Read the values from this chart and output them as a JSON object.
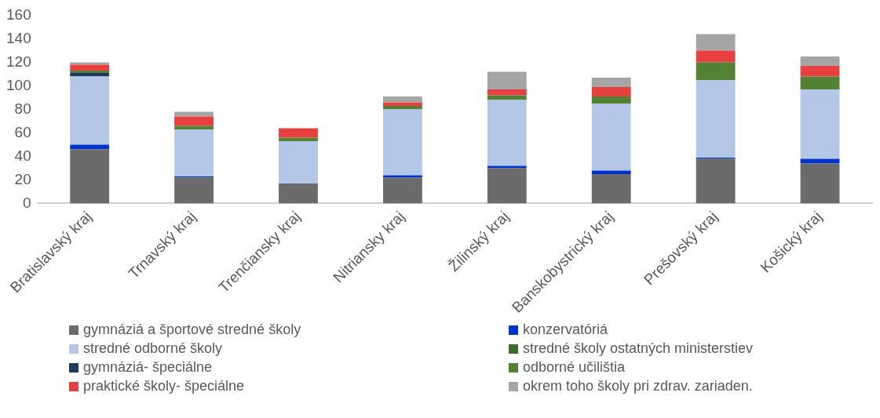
{
  "chart_data": {
    "type": "bar",
    "stacked": true,
    "grid": false,
    "legend": "bottom",
    "categories": [
      "Bratislavský kraj",
      "Trnavský kraj",
      "Trenčiansky kraj",
      "Nitriansky kraj",
      "Žilinský kraj",
      "Banskobystrický kraj",
      "Prešovský kraj",
      "Košický kraj"
    ],
    "ylim": [
      0,
      160
    ],
    "yticks": [
      0,
      20,
      40,
      60,
      80,
      100,
      120,
      140,
      160
    ],
    "series": [
      {
        "name": "gymnáziá a športové stredné školy",
        "color": "#6b6b6b",
        "values": [
          46,
          22,
          17,
          22,
          30,
          25,
          38,
          34
        ]
      },
      {
        "name": "konzervatóriá",
        "color": "#0033cc",
        "values": [
          4,
          1,
          0,
          2,
          2,
          3,
          1,
          4
        ]
      },
      {
        "name": "stredné odborné školy",
        "color": "#b4c7e7",
        "values": [
          58,
          40,
          36,
          56,
          56,
          57,
          66,
          59
        ]
      },
      {
        "name": "stredné školy ostatných ministerstiev",
        "color": "#3f6b2a",
        "values": [
          0,
          0,
          0,
          0,
          0,
          0,
          0,
          0
        ]
      },
      {
        "name": "gymnáziá- špeciálne",
        "color": "#203864",
        "values": [
          3,
          0,
          0,
          0,
          0,
          0,
          0,
          0
        ]
      },
      {
        "name": "odborné učilištia",
        "color": "#548235",
        "values": [
          2,
          3,
          3,
          3,
          4,
          6,
          15,
          11
        ]
      },
      {
        "name": "praktické školy- špeciálne",
        "color": "#e84040",
        "values": [
          5,
          8,
          8,
          3,
          5,
          8,
          10,
          9
        ]
      },
      {
        "name": "okrem toho školy pri zdrav. zariaden.",
        "color": "#a5a5a5",
        "values": [
          2,
          4,
          0,
          5,
          15,
          8,
          14,
          8
        ]
      }
    ]
  }
}
